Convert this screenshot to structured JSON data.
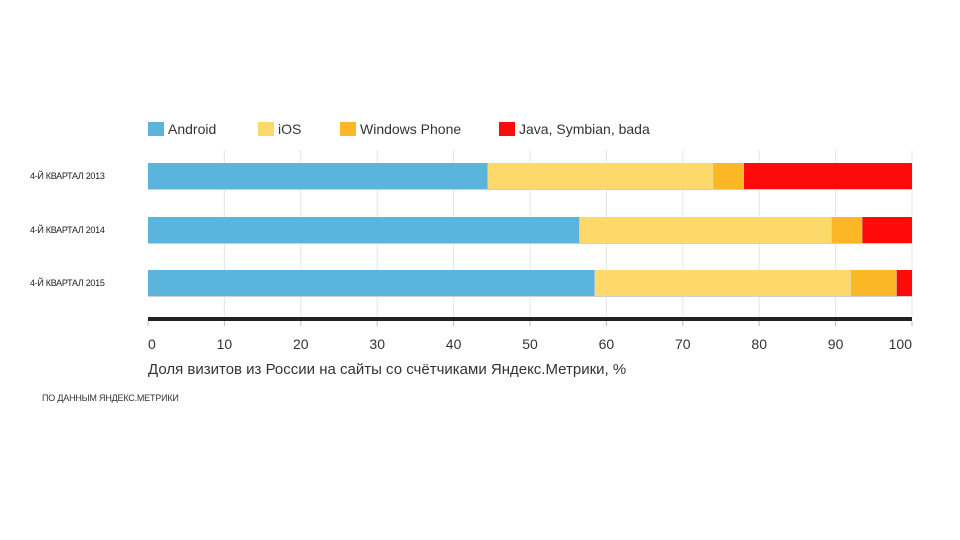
{
  "chart_data": {
    "type": "bar",
    "orientation": "horizontal",
    "stacked": true,
    "categories": [
      "4-Й КВАРТАЛ 2013",
      "4-Й КВАРТАЛ 2014",
      "4-Й КВАРТАЛ 2015"
    ],
    "series": [
      {
        "name": "Android",
        "color": "#5ab4dc",
        "values": [
          44.5,
          56.5,
          58.5
        ]
      },
      {
        "name": "iOS",
        "color": "#fdd96b",
        "values": [
          29.5,
          33.0,
          33.5
        ]
      },
      {
        "name": "Windows Phone",
        "color": "#fbb726",
        "values": [
          4.0,
          4.0,
          6.0
        ]
      },
      {
        "name": "Java, Symbian, bada",
        "color": "#ff0a0a",
        "values": [
          22.0,
          6.5,
          2.0
        ]
      }
    ],
    "xlim": [
      0,
      100
    ],
    "xticks": [
      0,
      10,
      20,
      30,
      40,
      50,
      60,
      70,
      80,
      90,
      100
    ],
    "xlabel": "Доля визитов из России на сайты со счётчиками Яндекс.Метрики, %",
    "ylabel": "",
    "title": "",
    "legend_position": "top",
    "grid": true,
    "source": "ПО ДАННЫМ ЯНДЕКС.МЕТРИКИ"
  },
  "colors": {
    "grid": "#e6e6e6",
    "axis": "#222222",
    "separator": "#d8d8d8"
  }
}
